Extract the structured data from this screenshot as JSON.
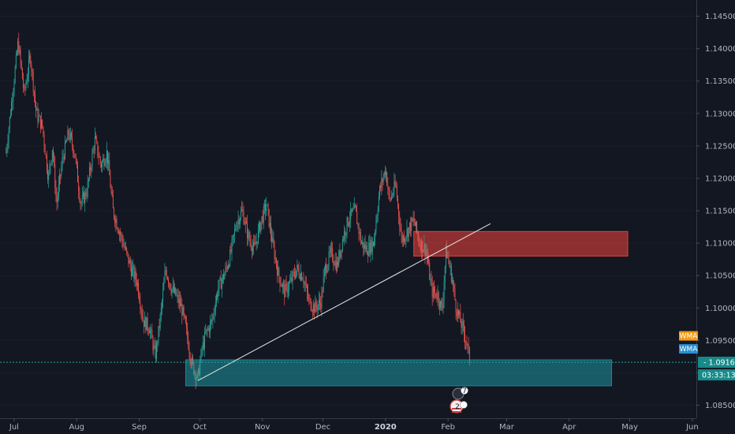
{
  "chart_data": {
    "type": "candlestick",
    "symbol_style": "EUR/USD daily",
    "y_axis": {
      "range": [
        1.083,
        1.1475
      ],
      "ticks": [
        "1.14500",
        "1.14000",
        "1.13500",
        "1.13000",
        "1.12500",
        "1.12000",
        "1.11500",
        "1.11000",
        "1.10500",
        "1.10000",
        "1.09500",
        "1.09000",
        "1.08500"
      ]
    },
    "x_axis": {
      "ticks": [
        {
          "label": "Jul",
          "date": "2019-07-01"
        },
        {
          "label": "Aug",
          "date": "2019-08-01"
        },
        {
          "label": "Sep",
          "date": "2019-09-01"
        },
        {
          "label": "Oct",
          "date": "2019-10-01"
        },
        {
          "label": "Nov",
          "date": "2019-11-01"
        },
        {
          "label": "Dec",
          "date": "2019-12-01"
        },
        {
          "label": "2020",
          "date": "2020-01-01",
          "bold": true
        },
        {
          "label": "Feb",
          "date": "2020-02-01"
        },
        {
          "label": "Mar",
          "date": "2020-03-01"
        },
        {
          "label": "Apr",
          "date": "2020-04-01"
        },
        {
          "label": "May",
          "date": "2020-05-01"
        },
        {
          "label": "Jun",
          "date": "2020-06-01"
        }
      ]
    },
    "price_path": [
      [
        "2019-06-27",
        1.124
      ],
      [
        "2019-07-03",
        1.141
      ],
      [
        "2019-07-06",
        1.133
      ],
      [
        "2019-07-09",
        1.139
      ],
      [
        "2019-07-12",
        1.13
      ],
      [
        "2019-07-15",
        1.128
      ],
      [
        "2019-07-18",
        1.12
      ],
      [
        "2019-07-20",
        1.125
      ],
      [
        "2019-07-22",
        1.116
      ],
      [
        "2019-07-25",
        1.123
      ],
      [
        "2019-07-28",
        1.127
      ],
      [
        "2019-07-31",
        1.124
      ],
      [
        "2019-08-03",
        1.116
      ],
      [
        "2019-08-06",
        1.118
      ],
      [
        "2019-08-10",
        1.126
      ],
      [
        "2019-08-13",
        1.122
      ],
      [
        "2019-08-16",
        1.124
      ],
      [
        "2019-08-19",
        1.115
      ],
      [
        "2019-08-22",
        1.112
      ],
      [
        "2019-08-25",
        1.109
      ],
      [
        "2019-08-28",
        1.106
      ],
      [
        "2019-08-31",
        1.104
      ],
      [
        "2019-09-03",
        1.098
      ],
      [
        "2019-09-06",
        1.097
      ],
      [
        "2019-09-09",
        1.0925
      ],
      [
        "2019-09-12",
        1.1
      ],
      [
        "2019-09-14",
        1.106
      ],
      [
        "2019-09-17",
        1.103
      ],
      [
        "2019-09-19",
        1.102
      ],
      [
        "2019-09-22",
        1.1
      ],
      [
        "2019-09-24",
        1.097
      ],
      [
        "2019-09-27",
        1.0915
      ],
      [
        "2019-09-30",
        1.089
      ],
      [
        "2019-10-02",
        1.0935
      ],
      [
        "2019-10-04",
        1.096
      ],
      [
        "2019-10-07",
        1.098
      ],
      [
        "2019-10-10",
        1.103
      ],
      [
        "2019-10-13",
        1.105
      ],
      [
        "2019-10-16",
        1.108
      ],
      [
        "2019-10-19",
        1.113
      ],
      [
        "2019-10-22",
        1.115
      ],
      [
        "2019-10-25",
        1.111
      ],
      [
        "2019-10-28",
        1.109
      ],
      [
        "2019-10-31",
        1.113
      ],
      [
        "2019-11-03",
        1.116
      ],
      [
        "2019-11-06",
        1.11
      ],
      [
        "2019-11-09",
        1.105
      ],
      [
        "2019-11-12",
        1.1025
      ],
      [
        "2019-11-15",
        1.104
      ],
      [
        "2019-11-18",
        1.106
      ],
      [
        "2019-11-21",
        1.105
      ],
      [
        "2019-11-24",
        1.101
      ],
      [
        "2019-11-27",
        1.1
      ],
      [
        "2019-11-30",
        1.101
      ],
      [
        "2019-12-02",
        1.106
      ],
      [
        "2019-12-05",
        1.1085
      ],
      [
        "2019-12-08",
        1.1065
      ],
      [
        "2019-12-11",
        1.111
      ],
      [
        "2019-12-14",
        1.114
      ],
      [
        "2019-12-17",
        1.115
      ],
      [
        "2019-12-20",
        1.11
      ],
      [
        "2019-12-23",
        1.109
      ],
      [
        "2019-12-26",
        1.11
      ],
      [
        "2019-12-29",
        1.118
      ],
      [
        "2020-01-01",
        1.1215
      ],
      [
        "2020-01-03",
        1.1165
      ],
      [
        "2020-01-06",
        1.119
      ],
      [
        "2020-01-09",
        1.1105
      ],
      [
        "2020-01-12",
        1.112
      ],
      [
        "2020-01-15",
        1.1135
      ],
      [
        "2020-01-18",
        1.11
      ],
      [
        "2020-01-21",
        1.109
      ],
      [
        "2020-01-24",
        1.1025
      ],
      [
        "2020-01-27",
        1.102
      ],
      [
        "2020-01-29",
        1.0995
      ],
      [
        "2020-01-31",
        1.109
      ],
      [
        "2020-02-03",
        1.1045
      ],
      [
        "2020-02-05",
        1.1
      ],
      [
        "2020-02-07",
        1.098
      ],
      [
        "2020-02-10",
        1.095
      ],
      [
        "2020-02-12",
        1.0915
      ]
    ],
    "zones": [
      {
        "name": "resistance",
        "from": "2020-01-15",
        "to": "2020-04-30",
        "top": 1.1118,
        "bottom": 1.108,
        "color": "#e0403a"
      },
      {
        "name": "support",
        "from": "2019-09-24",
        "to": "2020-04-22",
        "top": 1.092,
        "bottom": 1.088,
        "color": "#1b8a96"
      }
    ],
    "trendline": {
      "x1": "2019-09-30",
      "y1": 1.0888,
      "x2": "2020-02-22",
      "y2": 1.113,
      "color": "#e8e8e8"
    },
    "current_price": {
      "value": "1.09163",
      "countdown": "03:33:13",
      "bg": "#178a8a"
    },
    "indicator_badges": [
      {
        "label": "WMA",
        "bg": "#f39a12",
        "value": 1.0957
      },
      {
        "label": "WMA",
        "bg": "#2a8fcf",
        "value": 1.0937
      }
    ],
    "events": [
      {
        "date": "2020-02-06",
        "count": "7"
      },
      {
        "date": "2020-02-06",
        "count": "2",
        "flag": "us"
      }
    ],
    "colors": {
      "bull": "#26a69a",
      "bear": "#ef5350",
      "background": "#131722",
      "axis_text": "#b2b5be"
    }
  }
}
